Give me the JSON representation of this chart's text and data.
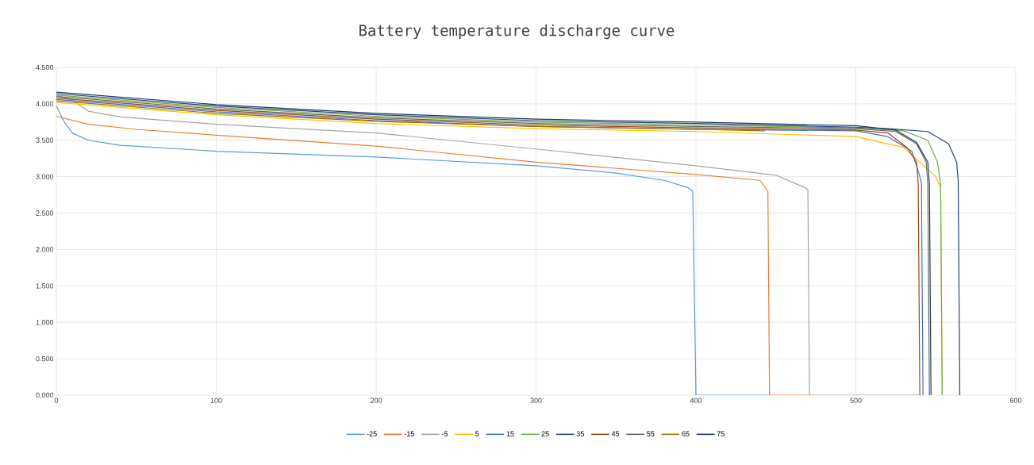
{
  "chart_data": {
    "type": "line",
    "title": "Battery temperature discharge curve",
    "xlim": [
      0,
      600
    ],
    "xticks": [
      0,
      100,
      200,
      300,
      400,
      500,
      600
    ],
    "ylim": [
      0,
      4.5
    ],
    "yticks": [
      {
        "value": 0,
        "label": "0.000"
      },
      {
        "value": 0.5,
        "label": "0.500"
      },
      {
        "value": 1,
        "label": "1.000"
      },
      {
        "value": 1.5,
        "label": "1.500"
      },
      {
        "value": 2,
        "label": "2.000"
      },
      {
        "value": 2.5,
        "label": "2.500"
      },
      {
        "value": 3,
        "label": "3.000"
      },
      {
        "value": 3.5,
        "label": "3.500"
      },
      {
        "value": 4,
        "label": "4.000"
      },
      {
        "value": 4.5,
        "label": "4.500"
      }
    ],
    "grid": true,
    "legend": "bottom",
    "marker": "none",
    "line_style": "solid",
    "series": [
      {
        "name": "-25",
        "color": "#5b9bd5",
        "x": [
          0,
          5,
          10,
          20,
          40,
          100,
          200,
          300,
          350,
          380,
          395,
          398,
          400,
          446
        ],
        "values": [
          3.97,
          3.75,
          3.6,
          3.5,
          3.43,
          3.35,
          3.27,
          3.15,
          3.05,
          2.95,
          2.85,
          2.8,
          0,
          0
        ]
      },
      {
        "name": "-15",
        "color": "#ed7d31",
        "x": [
          0,
          20,
          50,
          100,
          200,
          300,
          400,
          440,
          445,
          446,
          471
        ],
        "values": [
          3.83,
          3.72,
          3.65,
          3.57,
          3.42,
          3.2,
          3.03,
          2.95,
          2.8,
          0,
          0
        ]
      },
      {
        "name": "-5",
        "color": "#a5a5a5",
        "x": [
          0,
          10,
          20,
          40,
          100,
          200,
          300,
          400,
          450,
          468,
          470,
          471,
          540
        ],
        "values": [
          4.12,
          4.05,
          3.9,
          3.82,
          3.72,
          3.6,
          3.38,
          3.15,
          3.02,
          2.85,
          2.82,
          0,
          0
        ]
      },
      {
        "name": "5",
        "color": "#ffc000",
        "x": [
          0,
          100,
          200,
          300,
          400,
          500,
          530,
          550,
          553,
          554
        ],
        "values": [
          4.02,
          3.85,
          3.73,
          3.66,
          3.62,
          3.55,
          3.4,
          3.0,
          2.85,
          0
        ]
      },
      {
        "name": "15",
        "color": "#4472c4",
        "x": [
          0,
          100,
          200,
          300,
          400,
          500,
          520,
          535,
          540,
          541,
          542
        ],
        "values": [
          4.06,
          3.89,
          3.77,
          3.69,
          3.65,
          3.63,
          3.55,
          3.35,
          3.0,
          2.9,
          0
        ]
      },
      {
        "name": "25",
        "color": "#70ad47",
        "x": [
          0,
          100,
          200,
          300,
          400,
          500,
          530,
          545,
          551,
          553,
          554
        ],
        "values": [
          4.12,
          3.95,
          3.83,
          3.75,
          3.71,
          3.67,
          3.63,
          3.5,
          3.2,
          2.9,
          0
        ]
      },
      {
        "name": "35",
        "color": "#264478",
        "x": [
          0,
          100,
          200,
          300,
          400,
          500,
          520,
          545,
          558,
          563,
          564,
          565
        ],
        "values": [
          4.14,
          3.97,
          3.85,
          3.77,
          3.73,
          3.68,
          3.66,
          3.62,
          3.45,
          3.2,
          2.95,
          0
        ]
      },
      {
        "name": "45",
        "color": "#9e480e",
        "x": [
          0,
          100,
          200,
          300,
          400,
          500,
          520,
          532,
          538,
          539,
          540
        ],
        "values": [
          4.08,
          3.91,
          3.79,
          3.71,
          3.67,
          3.64,
          3.6,
          3.4,
          3.2,
          2.9,
          0
        ]
      },
      {
        "name": "55",
        "color": "#636363",
        "x": [
          0,
          100,
          200,
          300,
          400,
          500,
          525,
          538,
          544,
          545,
          546
        ],
        "values": [
          4.1,
          3.93,
          3.81,
          3.73,
          3.69,
          3.66,
          3.62,
          3.45,
          3.2,
          2.9,
          0
        ]
      },
      {
        "name": "65",
        "color": "#997300",
        "x": [
          0,
          100,
          200,
          300,
          400,
          443
        ],
        "values": [
          4.04,
          3.87,
          3.76,
          3.69,
          3.65,
          3.63
        ]
      },
      {
        "name": "75",
        "color": "#1f3864",
        "x": [
          0,
          100,
          200,
          300,
          400,
          500,
          525,
          538,
          545,
          546,
          547
        ],
        "values": [
          4.16,
          3.99,
          3.87,
          3.79,
          3.75,
          3.7,
          3.64,
          3.47,
          3.2,
          2.9,
          0
        ]
      }
    ]
  }
}
